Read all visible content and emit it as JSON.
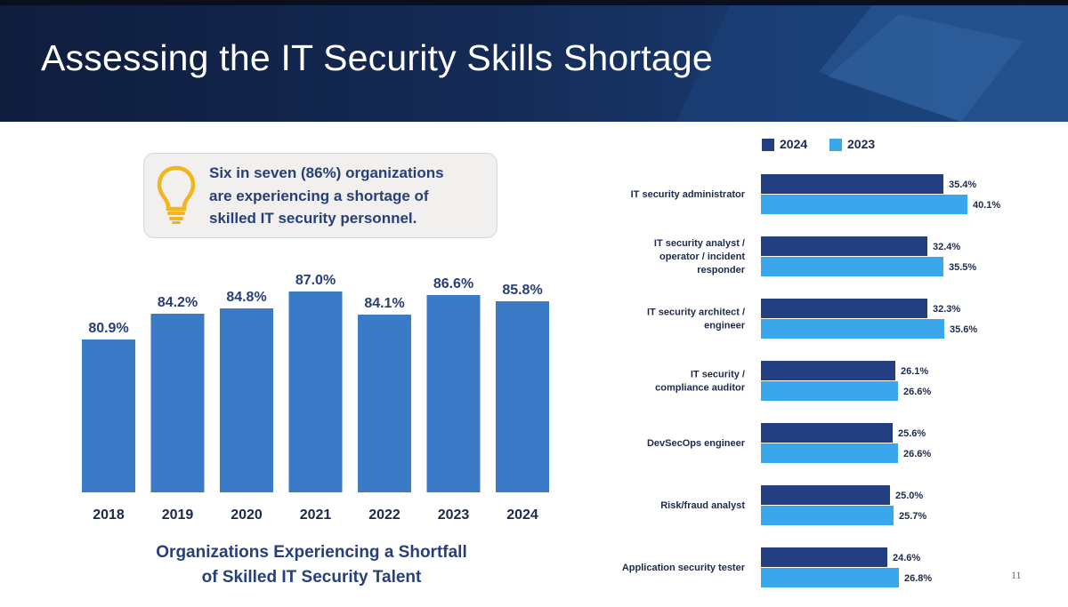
{
  "slide": {
    "title": "Assessing the IT Security Skills Shortage",
    "page_number": "11",
    "callout": {
      "text_lines": [
        "Six in seven (86%) organizations",
        "are experiencing a shortage of",
        "skilled IT security personnel."
      ],
      "icon": "lightbulb-icon"
    },
    "colors": {
      "header_dark": "#0f1d3d",
      "bar_left": "#3a7ac7",
      "bar_2024": "#233f82",
      "bar_2023": "#3aa6ec",
      "label_text": "#27407a",
      "bulb": "#f2b51d"
    }
  },
  "chart_data": [
    {
      "type": "bar",
      "title": "Organizations Experiencing a Shortfall of Skilled IT Security Talent",
      "title_lines": [
        "Organizations Experiencing a Shortfall",
        "of Skilled IT Security Talent"
      ],
      "categories": [
        "2018",
        "2019",
        "2020",
        "2021",
        "2022",
        "2023",
        "2024"
      ],
      "values": [
        80.9,
        84.2,
        84.8,
        87.0,
        84.1,
        86.6,
        85.8
      ],
      "value_labels": [
        "80.9%",
        "84.2%",
        "84.8%",
        "87.0%",
        "84.1%",
        "86.6%",
        "85.8%"
      ],
      "ylim": [
        75,
        87
      ],
      "grid": false
    },
    {
      "type": "bar",
      "orientation": "horizontal",
      "legend_placement": "top",
      "categories": [
        [
          "IT security administrator"
        ],
        [
          "IT security analyst /",
          "operator / incident",
          "responder"
        ],
        [
          "IT security architect /",
          "engineer"
        ],
        [
          "IT security /",
          "compliance auditor"
        ],
        [
          "DevSecOps engineer"
        ],
        [
          "Risk/fraud analyst"
        ],
        [
          "Application security tester"
        ]
      ],
      "series": [
        {
          "name": "2024",
          "values": [
            35.4,
            32.4,
            32.3,
            26.1,
            25.6,
            25.0,
            24.6
          ],
          "labels": [
            "35.4%",
            "32.4%",
            "32.3%",
            "26.1%",
            "25.6%",
            "25.0%",
            "24.6%"
          ]
        },
        {
          "name": "2023",
          "values": [
            40.1,
            35.5,
            35.6,
            26.6,
            26.6,
            25.7,
            26.8
          ],
          "labels": [
            "40.1%",
            "35.5%",
            "35.6%",
            "26.6%",
            "26.6%",
            "25.7%",
            "26.8%"
          ]
        }
      ],
      "xlim": [
        0,
        40.1
      ],
      "grid": false
    }
  ]
}
